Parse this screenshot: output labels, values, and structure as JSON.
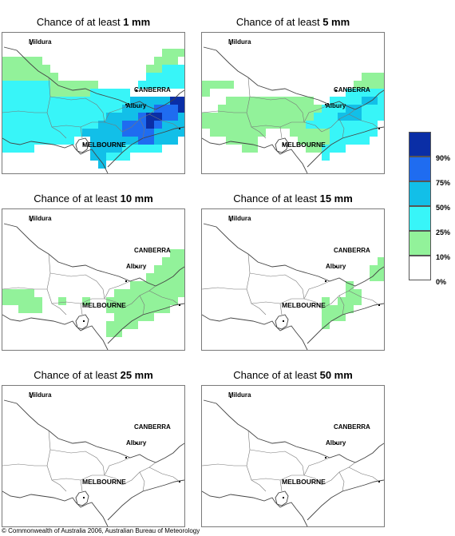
{
  "panels": [
    {
      "prefix": "Chance of at least ",
      "amount": "1 mm",
      "key": "p1"
    },
    {
      "prefix": "Chance of at least ",
      "amount": "5 mm",
      "key": "p5"
    },
    {
      "prefix": "Chance of at least ",
      "amount": "10 mm",
      "key": "p10"
    },
    {
      "prefix": "Chance of at least ",
      "amount": "15 mm",
      "key": "p15"
    },
    {
      "prefix": "Chance of at least ",
      "amount": "25 mm",
      "key": "p25"
    },
    {
      "prefix": "Chance of at least ",
      "amount": "50 mm",
      "key": "p50"
    }
  ],
  "places": {
    "mildura": "Mildura",
    "canberra": "CANBERRA",
    "albury": "Albury",
    "melbourne": "MELBOURNE"
  },
  "legend": {
    "labels": [
      "90%",
      "75%",
      "50%",
      "25%",
      "10%",
      "0%"
    ],
    "colors": [
      "#0a2ea6",
      "#1f6cf0",
      "#12bfe8",
      "#38f5f8",
      "#92f29a",
      "#ffffff"
    ]
  },
  "copyright": "© Commonwealth of Australia 2006, Australian Bureau of Meteorology"
}
